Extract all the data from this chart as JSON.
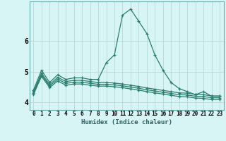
{
  "xlabel": "Humidex (Indice chaleur)",
  "bg_color": "#d8f5f5",
  "line_color": "#2a7d6e",
  "grid_color_major": "#b8d8d8",
  "grid_color_minor": "#c8e8e8",
  "xlim": [
    -0.5,
    23.5
  ],
  "ylim": [
    3.75,
    7.3
  ],
  "xtick_labels": [
    "0",
    "1",
    "2",
    "3",
    "4",
    "5",
    "6",
    "7",
    "8",
    "9",
    "10",
    "11",
    "12",
    "13",
    "14",
    "15",
    "16",
    "17",
    "18",
    "19",
    "20",
    "21",
    "22",
    "23"
  ],
  "ytick_labels": [
    "4",
    "5",
    "6"
  ],
  "ytick_vals": [
    4,
    5,
    6
  ],
  "series": [
    [
      4.4,
      5.05,
      4.65,
      4.9,
      4.75,
      4.8,
      4.8,
      4.75,
      4.75,
      5.3,
      5.55,
      6.85,
      7.05,
      6.65,
      6.25,
      5.55,
      5.05,
      4.65,
      4.45,
      4.35,
      4.25,
      4.35,
      4.2,
      4.2
    ],
    [
      4.35,
      4.95,
      4.58,
      4.82,
      4.68,
      4.72,
      4.72,
      4.68,
      4.65,
      4.65,
      4.63,
      4.6,
      4.56,
      4.52,
      4.47,
      4.43,
      4.39,
      4.35,
      4.31,
      4.3,
      4.26,
      4.25,
      4.21,
      4.21
    ],
    [
      4.3,
      4.9,
      4.53,
      4.76,
      4.62,
      4.66,
      4.66,
      4.62,
      4.59,
      4.59,
      4.57,
      4.54,
      4.5,
      4.46,
      4.41,
      4.37,
      4.33,
      4.29,
      4.25,
      4.24,
      4.2,
      4.19,
      4.15,
      4.15
    ],
    [
      4.25,
      4.85,
      4.48,
      4.7,
      4.56,
      4.6,
      4.6,
      4.56,
      4.53,
      4.53,
      4.51,
      4.48,
      4.44,
      4.4,
      4.35,
      4.31,
      4.27,
      4.23,
      4.19,
      4.18,
      4.14,
      4.13,
      4.09,
      4.09
    ]
  ]
}
